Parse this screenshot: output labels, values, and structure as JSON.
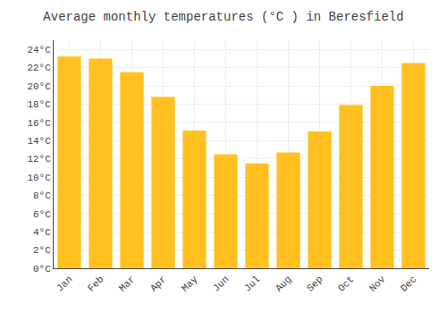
{
  "chart_data": {
    "type": "bar",
    "title": "Average monthly temperatures (°C ) in Beresfield",
    "categories": [
      "Jan",
      "Feb",
      "Mar",
      "Apr",
      "May",
      "Jun",
      "Jul",
      "Aug",
      "Sep",
      "Oct",
      "Nov",
      "Dec"
    ],
    "values": [
      23.2,
      23.0,
      21.5,
      18.8,
      15.1,
      12.5,
      11.5,
      12.7,
      15.0,
      17.9,
      20.0,
      22.5
    ],
    "color": "#FFC020",
    "ylim": [
      0,
      25
    ],
    "yticks": [
      {
        "value": 0,
        "label": "0°C"
      },
      {
        "value": 2,
        "label": "2°C"
      },
      {
        "value": 4,
        "label": "4°C"
      },
      {
        "value": 6,
        "label": "6°C"
      },
      {
        "value": 8,
        "label": "8°C"
      },
      {
        "value": 10,
        "label": "10°C"
      },
      {
        "value": 12,
        "label": "12°C"
      },
      {
        "value": 14,
        "label": "14°C"
      },
      {
        "value": 16,
        "label": "16°C"
      },
      {
        "value": 18,
        "label": "18°C"
      },
      {
        "value": 20,
        "label": "20°C"
      },
      {
        "value": 22,
        "label": "22°C"
      },
      {
        "value": 24,
        "label": "24°C"
      }
    ],
    "grid": true
  }
}
